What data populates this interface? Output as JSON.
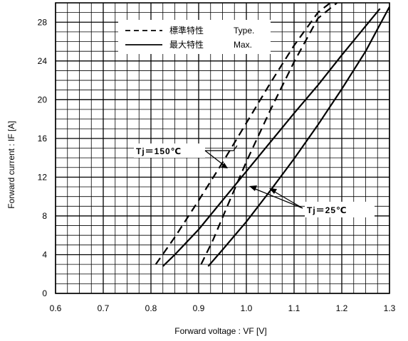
{
  "chart_data": {
    "type": "line",
    "xlabel": "Forward voltage : VF [V]",
    "ylabel": "Forward current : IF [A]",
    "xlim": [
      0.6,
      1.3
    ],
    "ylim": [
      0,
      30
    ],
    "x_ticks": [
      0.6,
      0.7,
      0.8,
      0.9,
      1.0,
      1.1,
      1.2,
      1.3
    ],
    "x_tick_labels": [
      "0.6",
      "0.7",
      "0.8",
      "0.9",
      "1.0",
      "1.1",
      "1.2",
      "1.3"
    ],
    "y_ticks": [
      0,
      4,
      8,
      12,
      16,
      20,
      24,
      28
    ],
    "y_tick_labels": [
      "0",
      "4",
      "8",
      "12",
      "16",
      "20",
      "24",
      "28"
    ],
    "grid": true,
    "legend": {
      "placement": "top-center",
      "entries": [
        {
          "style": "dashed",
          "label_ja": "標準特性",
          "label": "Type."
        },
        {
          "style": "solid",
          "label_ja": "最大特性",
          "label": "Max."
        }
      ]
    },
    "series": [
      {
        "style": "dashed",
        "condition": "Tj=150℃",
        "x": [
          0.81,
          0.85,
          0.9,
          0.95,
          1.0,
          1.05,
          1.1,
          1.15,
          1.176
        ],
        "y": [
          3.0,
          5.8,
          9.6,
          13.5,
          17.6,
          21.7,
          25.6,
          29.0,
          30.0
        ]
      },
      {
        "style": "solid",
        "condition": "Tj=150℃",
        "x": [
          0.825,
          0.85,
          0.9,
          0.95,
          1.0,
          1.05,
          1.1,
          1.15,
          1.2,
          1.25,
          1.28
        ],
        "y": [
          2.8,
          4.0,
          6.6,
          9.6,
          12.6,
          15.6,
          18.6,
          21.5,
          24.6,
          27.6,
          29.4
        ]
      },
      {
        "style": "dashed",
        "condition": "Tj=25℃",
        "x": [
          0.905,
          0.93,
          0.96,
          1.0,
          1.05,
          1.1,
          1.15,
          1.19
        ],
        "y": [
          3.0,
          5.5,
          9.0,
          13.6,
          18.9,
          23.9,
          28.4,
          30.0
        ]
      },
      {
        "style": "solid",
        "condition": "Tj=25℃",
        "x": [
          0.92,
          0.95,
          1.0,
          1.05,
          1.1,
          1.15,
          1.2,
          1.25,
          1.3
        ],
        "y": [
          2.8,
          4.5,
          7.4,
          10.6,
          13.9,
          17.4,
          21.1,
          25.0,
          29.6
        ]
      }
    ],
    "annotations": [
      {
        "text": "Tj＝150℃",
        "target_series": [
          0,
          1
        ]
      },
      {
        "text": "Tj＝25℃",
        "target_series": [
          2,
          3
        ]
      }
    ]
  }
}
